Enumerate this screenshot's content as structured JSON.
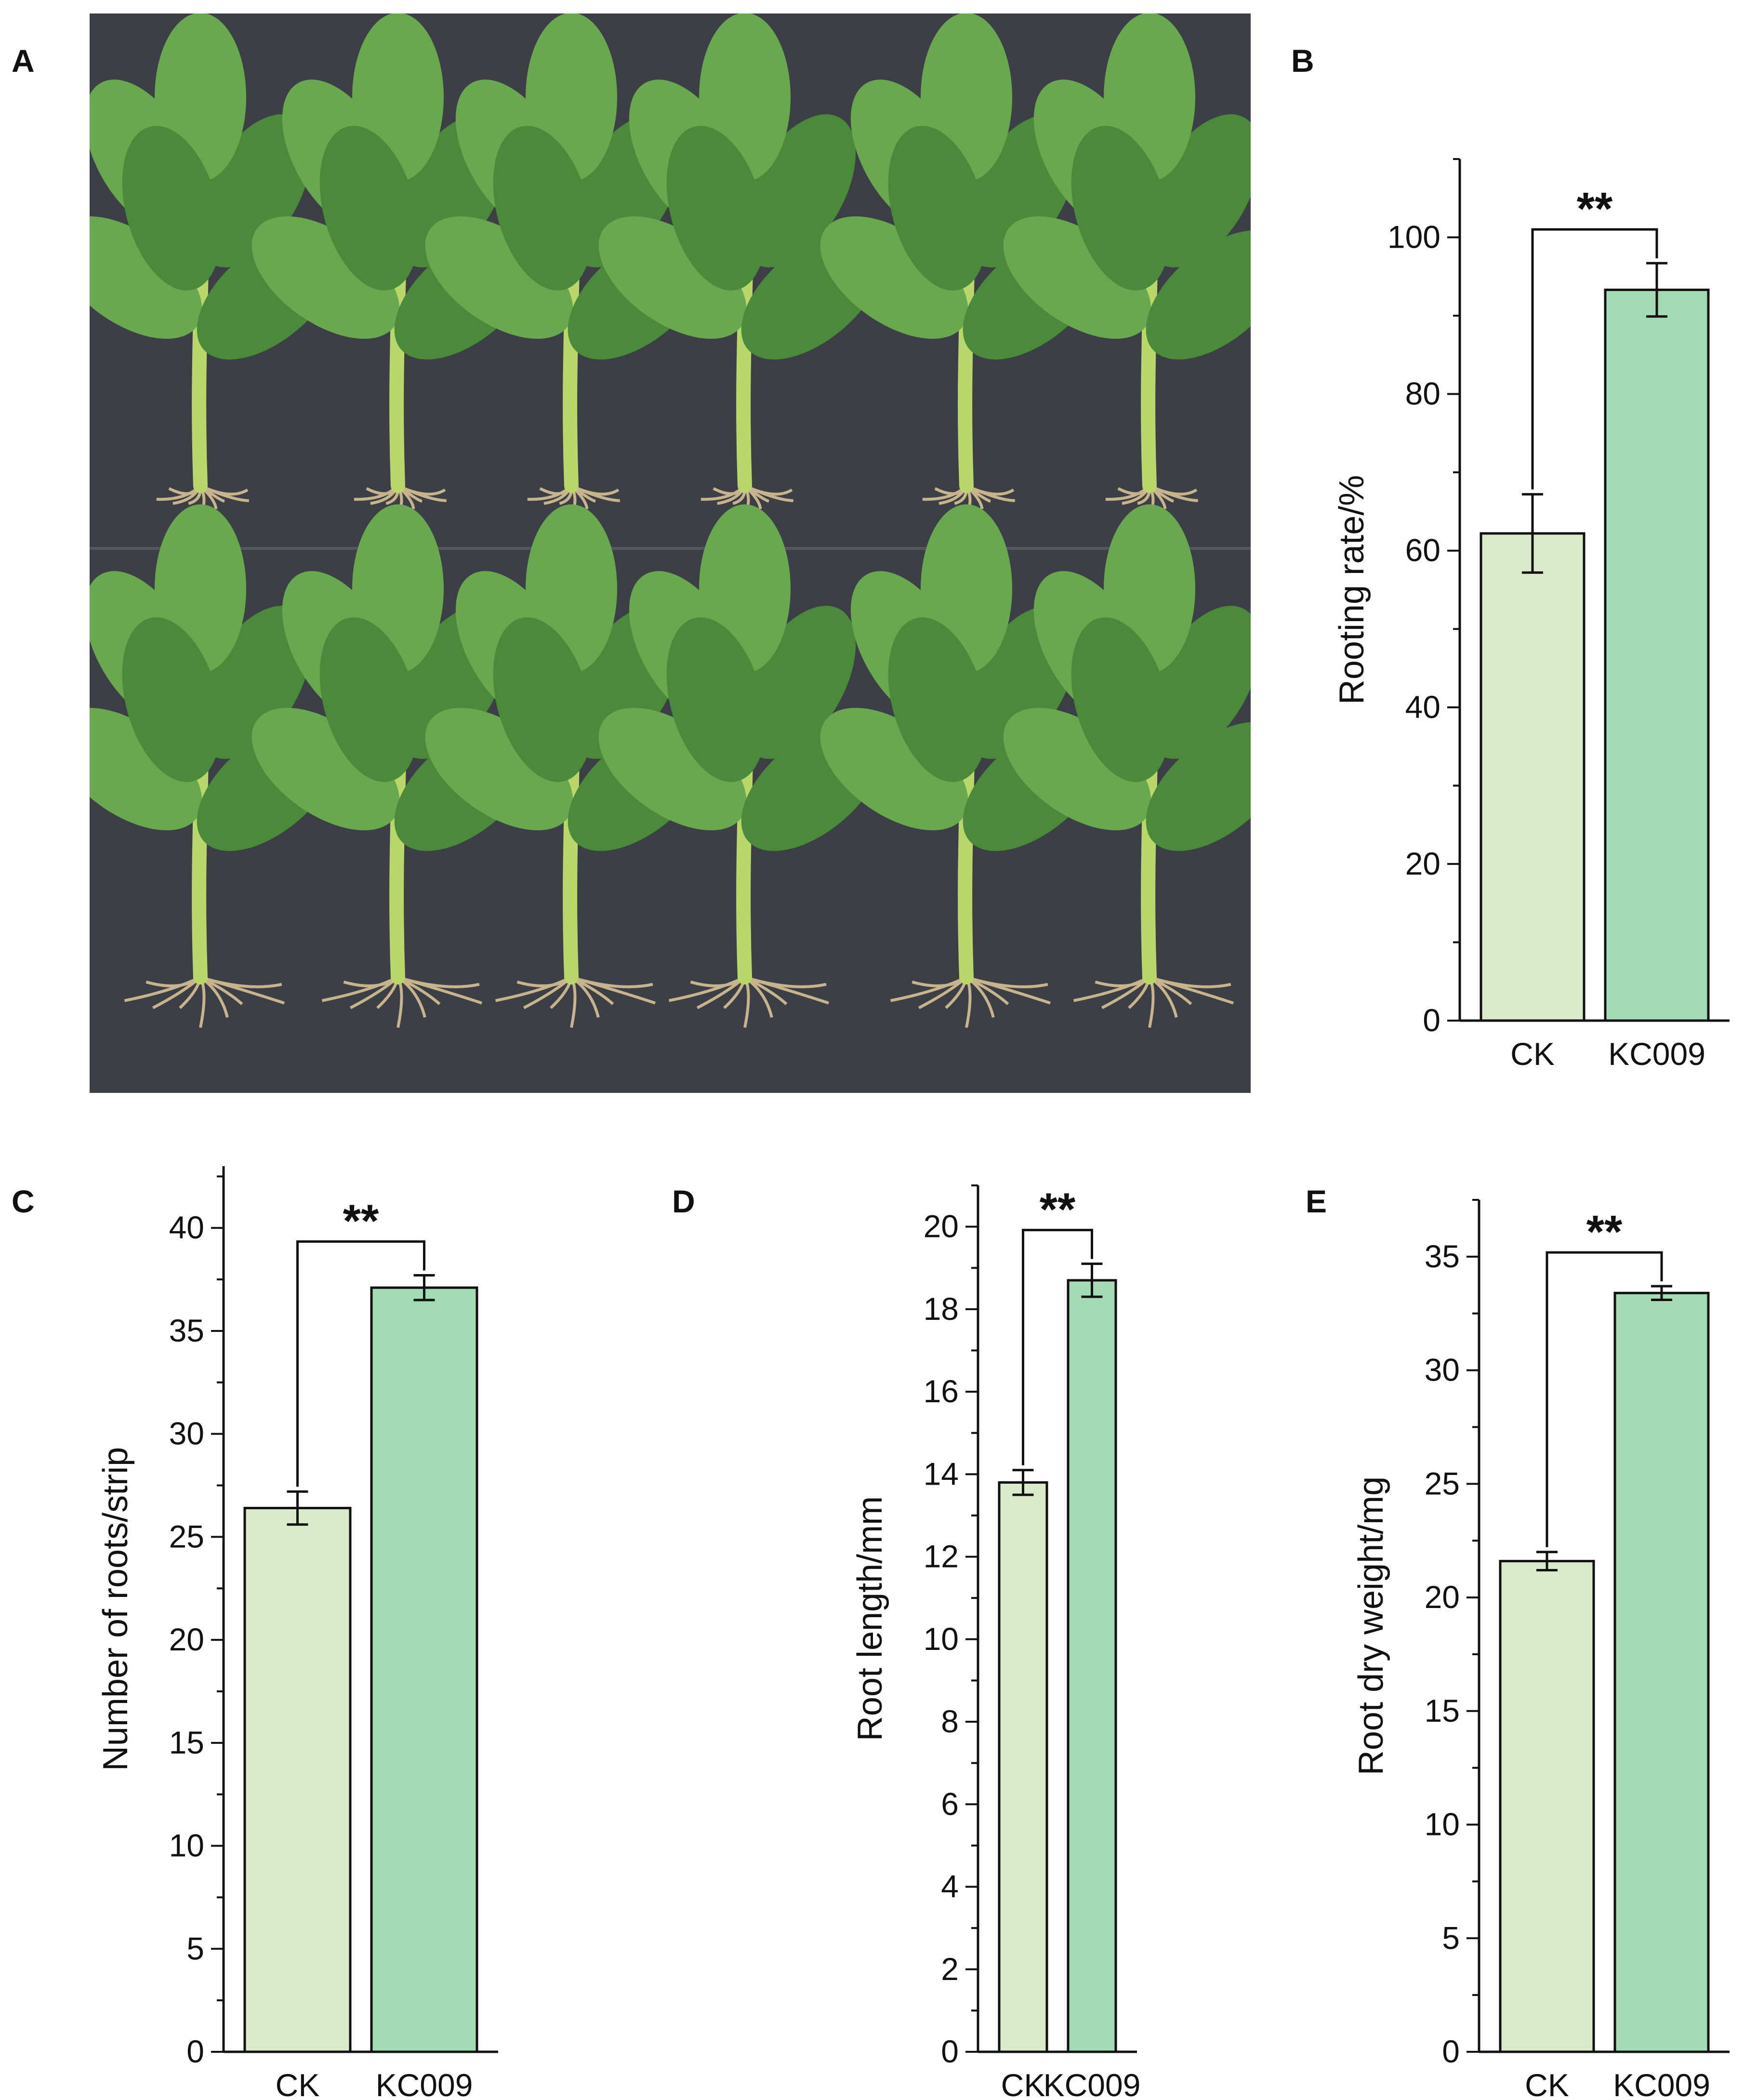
{
  "panels": {
    "a": "A",
    "b": "B",
    "c": "C",
    "d": "D",
    "e": "E"
  },
  "photo": {
    "description_icon": "plant-cuttings-photo"
  },
  "colors": {
    "ck": "#d9eacb",
    "kc009": "#a3dbb5",
    "stroke": "#111111",
    "photo_bg": "#3d3f47",
    "leaf": "#6aa84f",
    "leaf_dark": "#4a8a3a",
    "stem": "#b8d66a",
    "root": "#c8b48c"
  },
  "chart_data": [
    {
      "id": "B",
      "type": "bar",
      "categories": [
        "CK",
        "KC009"
      ],
      "values": [
        62.2,
        93.3
      ],
      "errors": [
        5.0,
        3.4
      ],
      "ylabel": "Rooting rate/%",
      "ylim": [
        0,
        110
      ],
      "yticks": [
        0,
        20,
        40,
        60,
        80,
        100
      ],
      "minor_step": 10,
      "significance": "**"
    },
    {
      "id": "C",
      "type": "bar",
      "categories": [
        "CK",
        "KC009"
      ],
      "values": [
        26.4,
        37.1
      ],
      "errors": [
        0.8,
        0.6
      ],
      "ylabel": "Number of roots/strip",
      "ylim": [
        0,
        43
      ],
      "yticks": [
        0,
        5,
        10,
        15,
        20,
        25,
        30,
        35,
        40
      ],
      "minor_step": 2.5,
      "significance": "**"
    },
    {
      "id": "D",
      "type": "bar",
      "categories": [
        "CK",
        "KC009"
      ],
      "values": [
        13.8,
        18.7
      ],
      "errors": [
        0.3,
        0.4
      ],
      "ylabel": "Root length/mm",
      "ylim": [
        0,
        21
      ],
      "yticks": [
        0,
        2,
        4,
        6,
        8,
        10,
        12,
        14,
        16,
        18,
        20
      ],
      "minor_step": 1,
      "significance": "**"
    },
    {
      "id": "E",
      "type": "bar",
      "categories": [
        "CK",
        "KC009"
      ],
      "values": [
        21.6,
        33.4
      ],
      "errors": [
        0.4,
        0.3
      ],
      "ylabel": "Root dry weight/mg",
      "ylim": [
        0,
        37.5
      ],
      "yticks": [
        0,
        5,
        10,
        15,
        20,
        25,
        30,
        35
      ],
      "minor_step": 2.5,
      "significance": "**"
    }
  ]
}
